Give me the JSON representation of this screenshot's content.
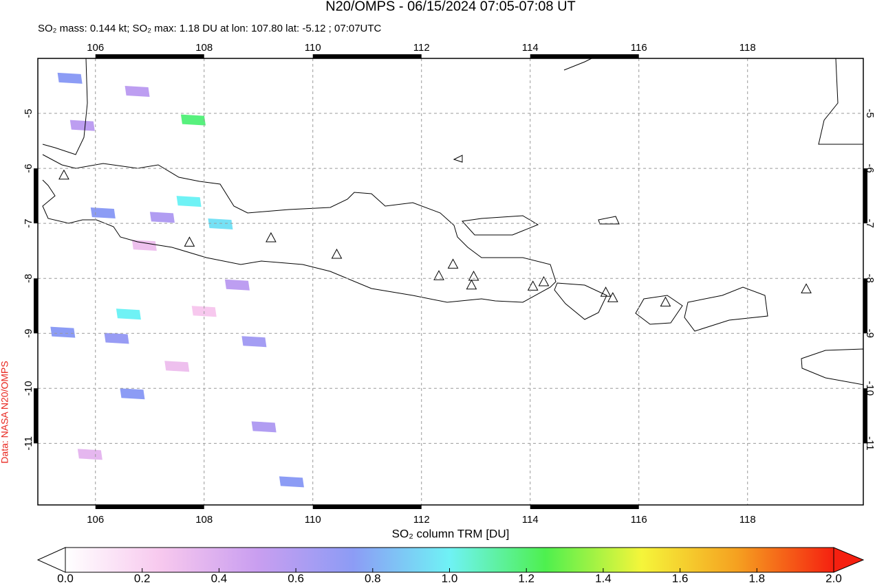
{
  "chart_data": {
    "type": "map",
    "title": "N20/OMPS - 06/15/2024 07:05-07:08 UT",
    "subtitle": "SO₂ mass: 0.144 kt; SO₂ max: 1.18 DU at lon: 107.80 lat: -5.12 ; 07:07UTC",
    "credit": "Data: NASA N20/OMPS",
    "colorbar_label": "SO₂ column TRM [DU]",
    "xlim": [
      104.94,
      120.13
    ],
    "ylim": [
      -12.12,
      -4.0
    ],
    "xticks": [
      106,
      108,
      110,
      112,
      114,
      116,
      118
    ],
    "yticks": [
      -5,
      -6,
      -7,
      -8,
      -9,
      -10,
      -11
    ],
    "grid": true,
    "colorbar_lim": [
      0,
      2
    ],
    "colorbar_ticks": [
      {
        "value": 0,
        "label": "0.0"
      },
      0.2,
      0.4,
      0.6,
      0.8,
      {
        "value": 1,
        "label": "1.0"
      },
      1.2,
      1.4,
      1.6,
      1.8,
      {
        "value": 2,
        "label": "2.0"
      }
    ],
    "colormap": [
      "#ffffff",
      "#f7c8ee",
      "#c99ef0",
      "#8c9cf5",
      "#6ff2f5",
      "#4ef04e",
      "#f5f53a",
      "#f5a020",
      "#f52010"
    ],
    "pixels": [
      {
        "lon": 105.53,
        "lat": -4.36,
        "value": 0.75
      },
      {
        "lon": 107.8,
        "lat": -5.12,
        "value": 1.18
      },
      {
        "lon": 107.72,
        "lat": -6.6,
        "value": 1.0
      },
      {
        "lon": 108.3,
        "lat": -7.01,
        "value": 0.95
      },
      {
        "lon": 106.14,
        "lat": -6.81,
        "value": 0.75
      },
      {
        "lon": 106.61,
        "lat": -8.65,
        "value": 1.0
      },
      {
        "lon": 106.39,
        "lat": -9.09,
        "value": 0.7
      },
      {
        "lon": 105.4,
        "lat": -8.98,
        "value": 0.75
      },
      {
        "lon": 106.68,
        "lat": -10.1,
        "value": 0.75
      },
      {
        "lon": 108.92,
        "lat": -9.15,
        "value": 0.65
      },
      {
        "lon": 109.61,
        "lat": -11.7,
        "value": 0.75
      },
      {
        "lon": 106.77,
        "lat": -4.6,
        "value": 0.55
      },
      {
        "lon": 108.61,
        "lat": -8.12,
        "value": 0.55
      },
      {
        "lon": 107.23,
        "lat": -6.89,
        "value": 0.6
      },
      {
        "lon": 105.76,
        "lat": -5.22,
        "value": 0.55
      },
      {
        "lon": 109.1,
        "lat": -10.7,
        "value": 0.6
      },
      {
        "lon": 106.9,
        "lat": -7.4,
        "value": 0.3
      },
      {
        "lon": 107.5,
        "lat": -9.6,
        "value": 0.3
      },
      {
        "lon": 105.9,
        "lat": -11.2,
        "value": 0.35
      },
      {
        "lon": 108.0,
        "lat": -8.6,
        "value": 0.25
      }
    ],
    "volcanoes": [
      {
        "lon": 105.42,
        "lat": -6.12
      },
      {
        "lon": 107.73,
        "lat": -7.34
      },
      {
        "lon": 109.23,
        "lat": -7.26
      },
      {
        "lon": 110.44,
        "lat": -7.56
      },
      {
        "lon": 112.32,
        "lat": -7.95
      },
      {
        "lon": 112.58,
        "lat": -7.74
      },
      {
        "lon": 112.96,
        "lat": -7.96
      },
      {
        "lon": 112.92,
        "lat": -8.12
      },
      {
        "lon": 114.05,
        "lat": -8.14
      },
      {
        "lon": 114.25,
        "lat": -8.06
      },
      {
        "lon": 115.39,
        "lat": -8.25
      },
      {
        "lon": 115.52,
        "lat": -8.35
      },
      {
        "lon": 116.49,
        "lat": -8.43
      },
      {
        "lon": 119.08,
        "lat": -8.19
      }
    ]
  }
}
